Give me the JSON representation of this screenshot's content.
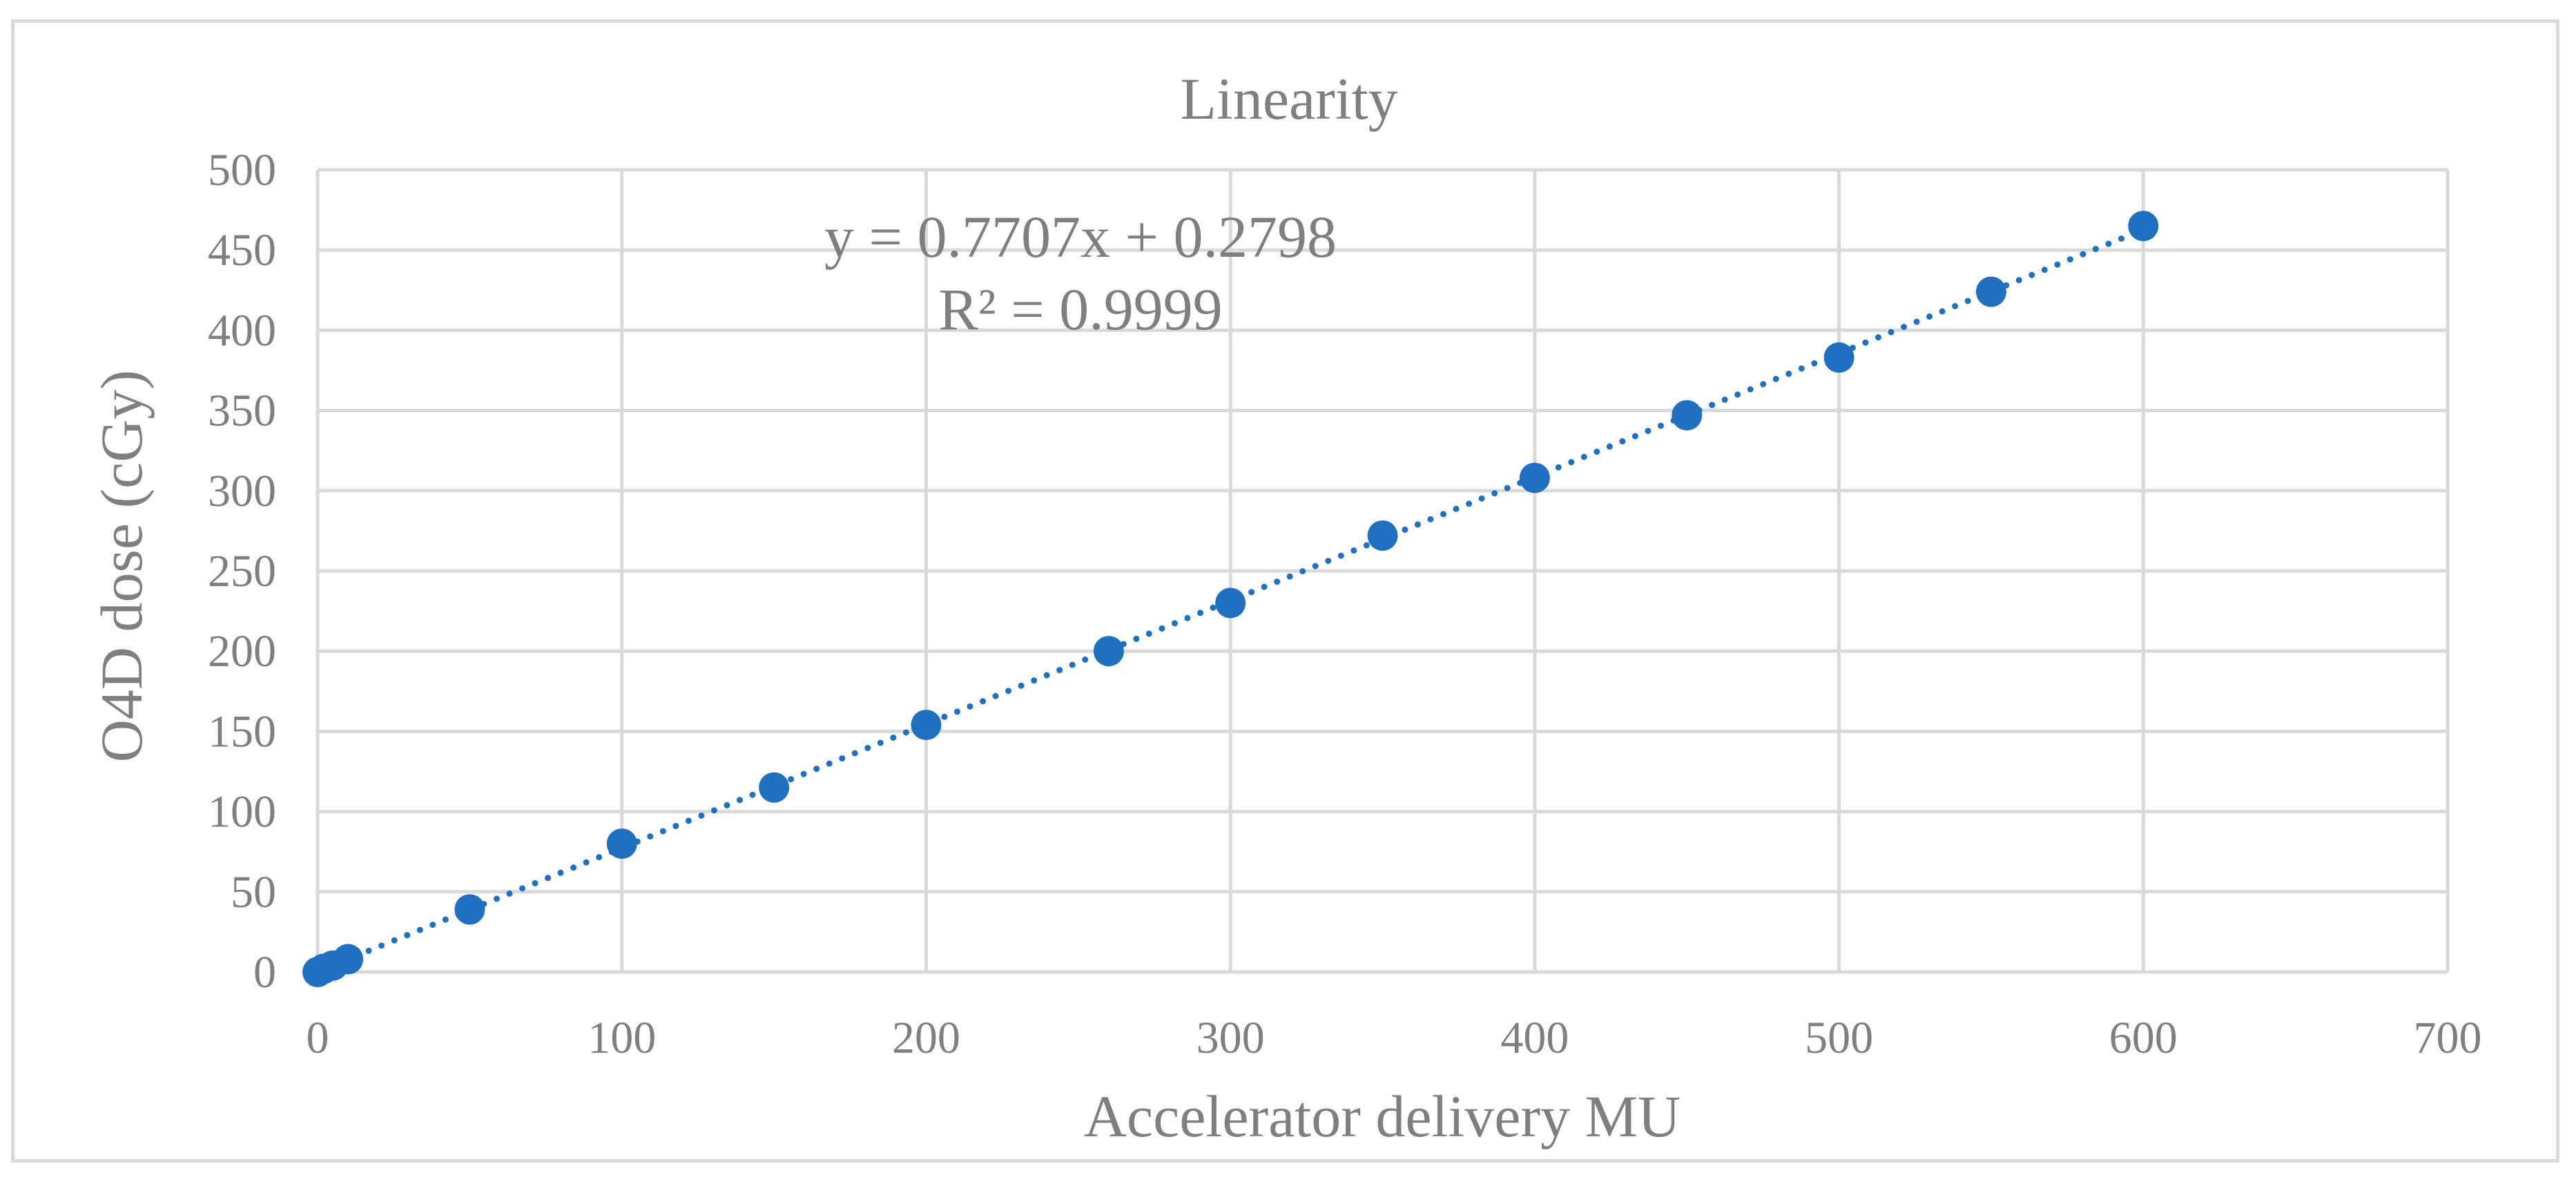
{
  "chart_data": {
    "type": "scatter",
    "title": "Linearity",
    "xlabel": "Accelerator delivery MU",
    "ylabel": "O4D dose (cGy)",
    "xlim": [
      0,
      700
    ],
    "ylim": [
      0,
      500
    ],
    "x_ticks": [
      0,
      100,
      200,
      300,
      400,
      500,
      600,
      700
    ],
    "y_ticks": [
      0,
      50,
      100,
      150,
      200,
      250,
      300,
      350,
      400,
      450,
      500
    ],
    "grid": true,
    "legend": "none",
    "series": [
      {
        "points": [
          {
            "x": 0,
            "y": 0
          },
          {
            "x": 2,
            "y": 2
          },
          {
            "x": 5,
            "y": 4
          },
          {
            "x": 10,
            "y": 8
          },
          {
            "x": 50,
            "y": 39
          },
          {
            "x": 100,
            "y": 80
          },
          {
            "x": 150,
            "y": 115
          },
          {
            "x": 200,
            "y": 154
          },
          {
            "x": 260,
            "y": 200
          },
          {
            "x": 300,
            "y": 230
          },
          {
            "x": 350,
            "y": 272
          },
          {
            "x": 400,
            "y": 308
          },
          {
            "x": 450,
            "y": 347
          },
          {
            "x": 500,
            "y": 383
          },
          {
            "x": 550,
            "y": 424
          },
          {
            "x": 600,
            "y": 465
          }
        ],
        "color": "#1f70c1"
      }
    ],
    "trendline": {
      "type": "linear",
      "style": "dotted",
      "slope": 0.7707,
      "intercept": 0.2798,
      "x_range": [
        0,
        600
      ],
      "equation_label": "y = 0.7707x + 0.2798",
      "r2_label": "R² = 0.9999",
      "color": "#1f70c1"
    },
    "colors": {
      "grid": "#d9d9d9",
      "text": "#7f7f7f",
      "frame": "#d9d9d9"
    }
  }
}
